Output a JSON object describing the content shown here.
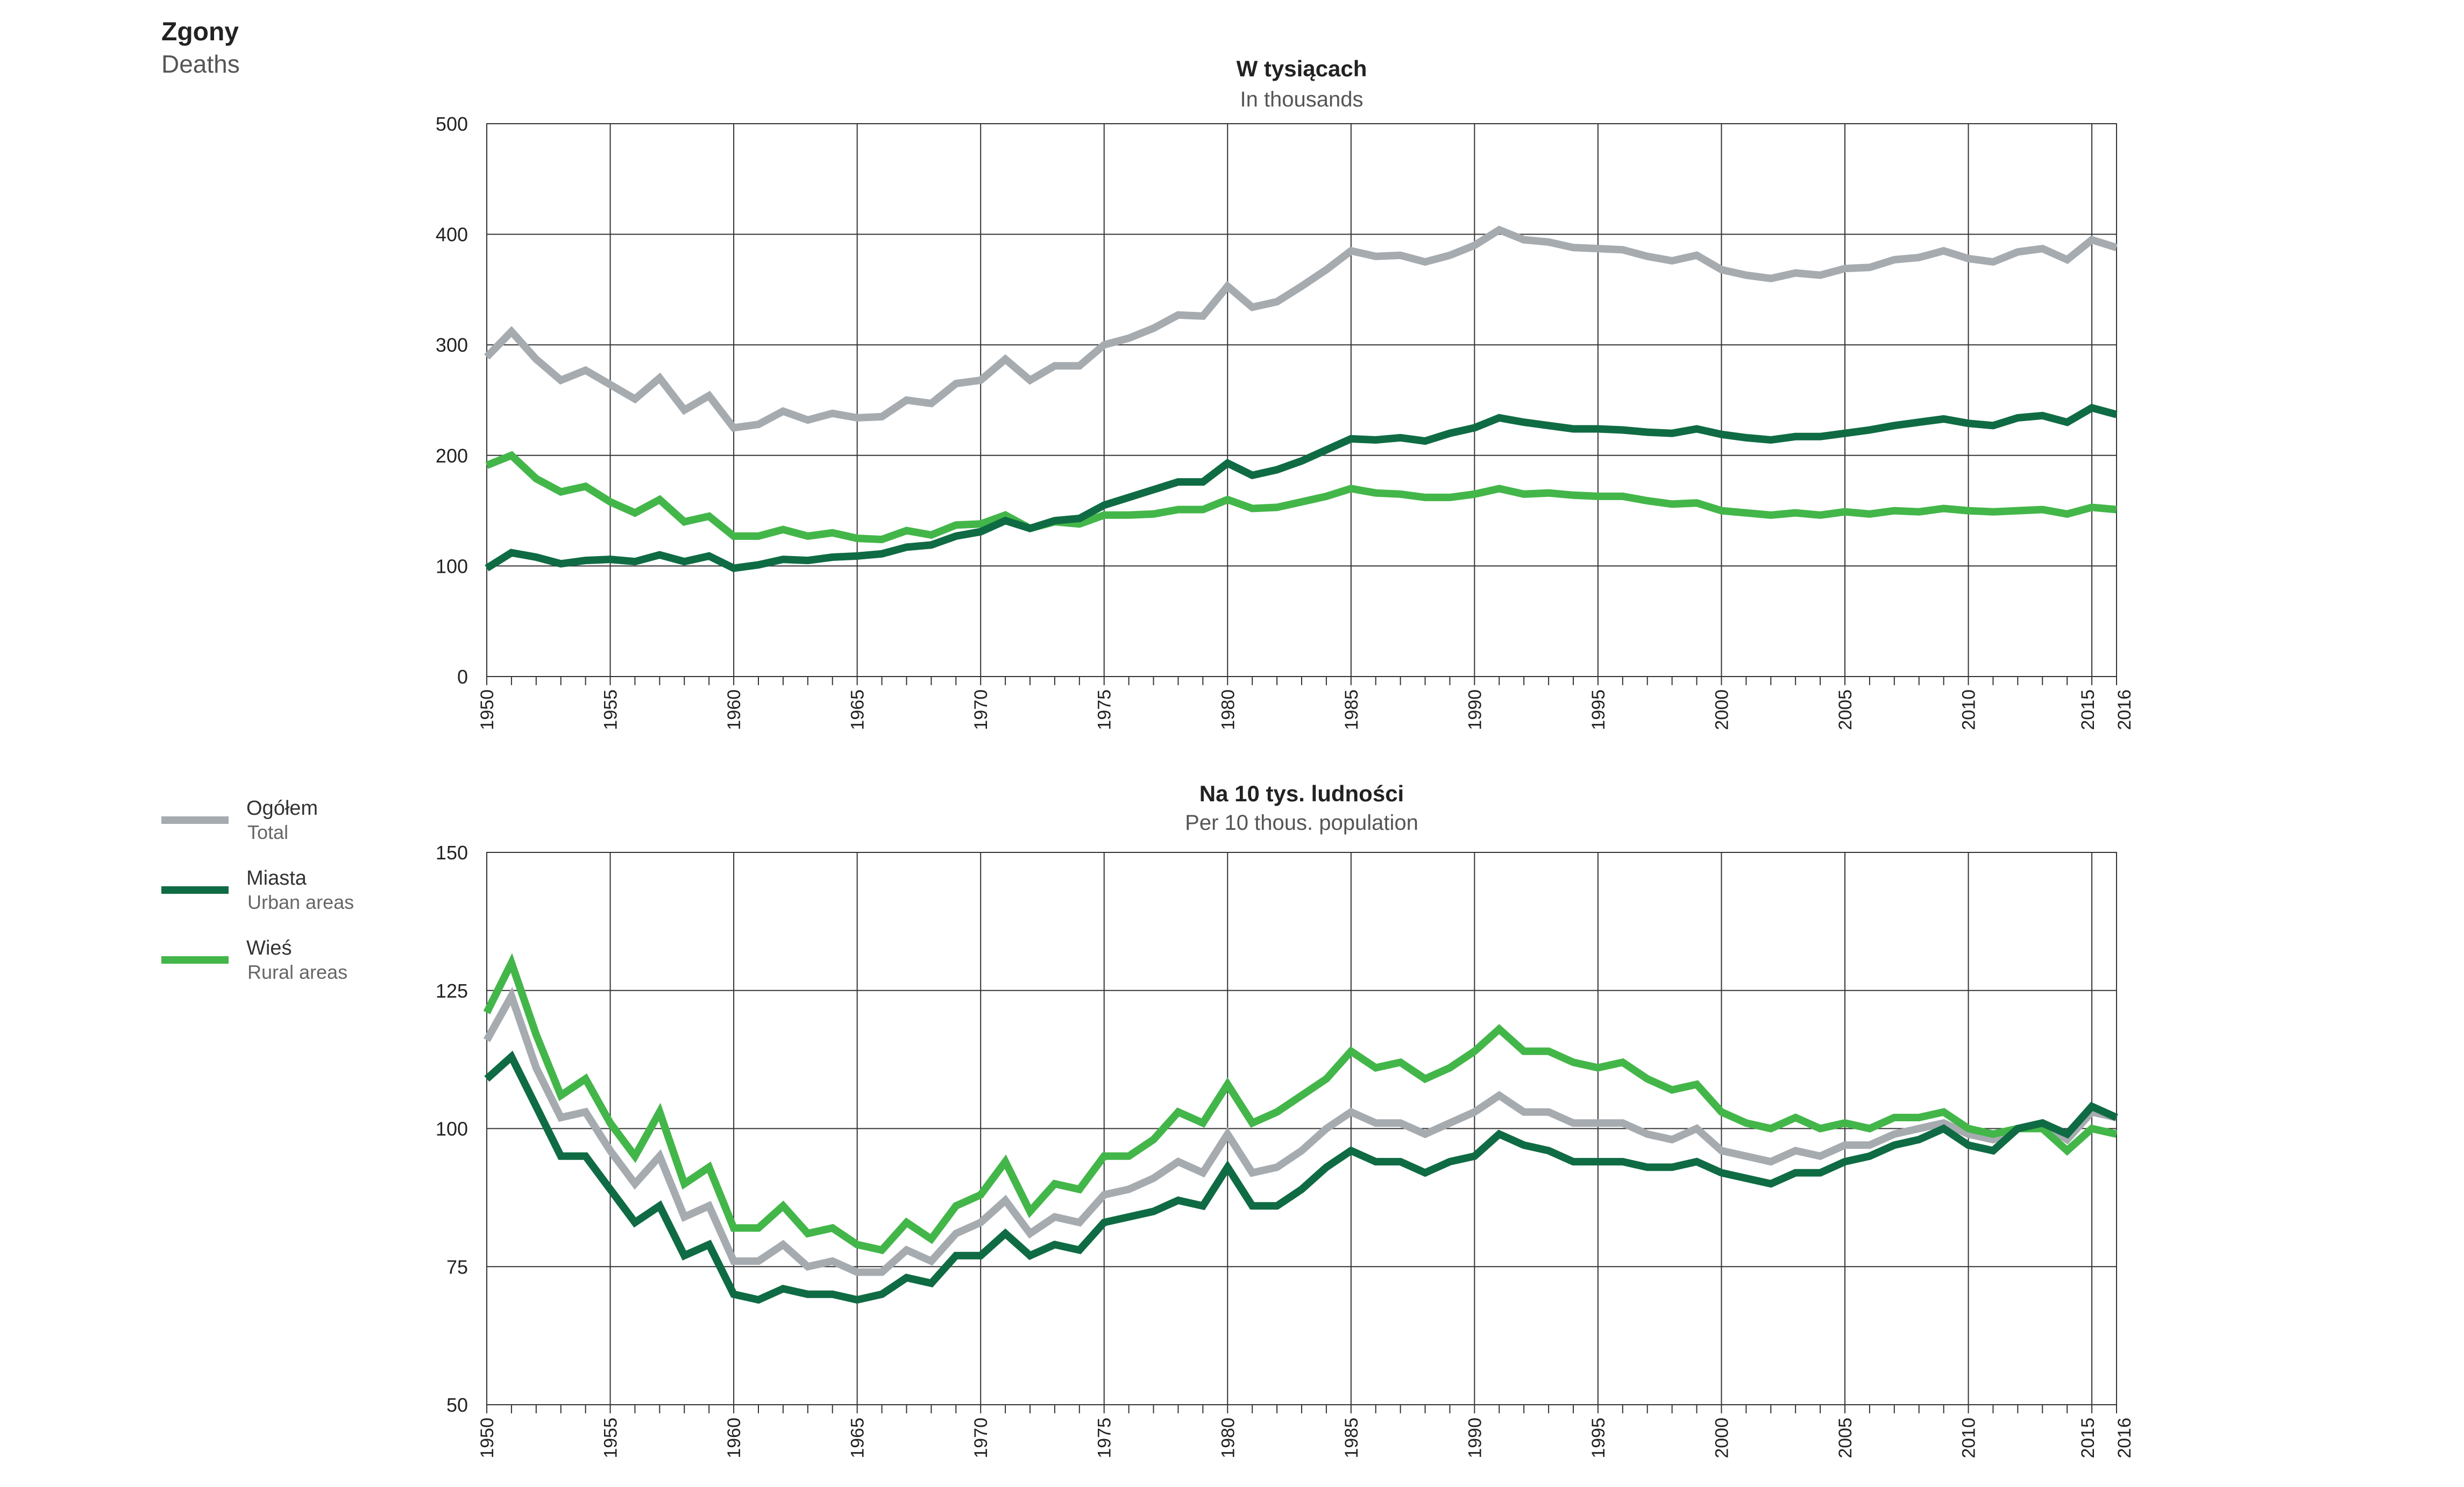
{
  "header": {
    "title": "Zgony",
    "subtitle": "Deaths"
  },
  "legend": {
    "items": [
      {
        "label": "Ogółem",
        "sublabel": "Total",
        "color": "#a6abb0"
      },
      {
        "label": "Miasta",
        "sublabel": "Urban areas",
        "color": "#0f6b43"
      },
      {
        "label": "Wieś",
        "sublabel": "Rural areas",
        "color": "#43b649"
      }
    ]
  },
  "chart_data": [
    {
      "type": "line",
      "title": "W tysiącach",
      "subtitle": "In thousands",
      "xlabel": "",
      "ylabel": "",
      "xlim": [
        1950,
        2016
      ],
      "ylim": [
        0,
        500
      ],
      "yticks": [
        0,
        100,
        200,
        300,
        400,
        500
      ],
      "xticks": [
        "1950",
        "1955",
        "1960",
        "1965",
        "1970",
        "1975",
        "1980",
        "1985",
        "1990",
        "1995",
        "2000",
        "2005",
        "2010",
        "2015",
        "2016"
      ],
      "grid": true,
      "x": [
        1950,
        1951,
        1952,
        1953,
        1954,
        1955,
        1956,
        1957,
        1958,
        1959,
        1960,
        1961,
        1962,
        1963,
        1964,
        1965,
        1966,
        1967,
        1968,
        1969,
        1970,
        1971,
        1972,
        1973,
        1974,
        1975,
        1976,
        1977,
        1978,
        1979,
        1980,
        1981,
        1982,
        1983,
        1984,
        1985,
        1986,
        1987,
        1988,
        1989,
        1990,
        1991,
        1992,
        1993,
        1994,
        1995,
        1996,
        1997,
        1998,
        1999,
        2000,
        2001,
        2002,
        2003,
        2004,
        2005,
        2006,
        2007,
        2008,
        2009,
        2010,
        2011,
        2012,
        2013,
        2014,
        2015,
        2016
      ],
      "series": [
        {
          "name": "Ogółem",
          "values": [
            289,
            312,
            287,
            268,
            277,
            264,
            251,
            270,
            241,
            254,
            225,
            228,
            240,
            232,
            238,
            234,
            235,
            250,
            247,
            265,
            268,
            287,
            268,
            281,
            281,
            300,
            306,
            315,
            327,
            326,
            353,
            334,
            339,
            353,
            368,
            385,
            380,
            381,
            375,
            381,
            390,
            404,
            395,
            393,
            388,
            387,
            386,
            380,
            376,
            381,
            368,
            363,
            360,
            365,
            363,
            369,
            370,
            377,
            379,
            385,
            378,
            375,
            384,
            387,
            377,
            395,
            388
          ]
        },
        {
          "name": "Miasta",
          "values": [
            98,
            112,
            108,
            102,
            105,
            106,
            104,
            110,
            104,
            109,
            98,
            101,
            106,
            105,
            108,
            109,
            111,
            117,
            119,
            127,
            131,
            141,
            134,
            141,
            143,
            155,
            162,
            169,
            176,
            176,
            193,
            182,
            187,
            195,
            205,
            215,
            214,
            216,
            213,
            220,
            225,
            234,
            230,
            227,
            224,
            224,
            223,
            221,
            220,
            224,
            219,
            216,
            214,
            217,
            217,
            220,
            223,
            227,
            230,
            233,
            229,
            227,
            234,
            236,
            230,
            243,
            237
          ]
        },
        {
          "name": "Wieś",
          "values": [
            191,
            200,
            179,
            167,
            172,
            158,
            148,
            160,
            140,
            145,
            127,
            127,
            133,
            127,
            130,
            125,
            124,
            132,
            128,
            137,
            138,
            146,
            134,
            140,
            138,
            146,
            146,
            147,
            151,
            151,
            160,
            152,
            153,
            158,
            163,
            170,
            166,
            165,
            162,
            162,
            165,
            170,
            165,
            166,
            164,
            163,
            163,
            159,
            156,
            157,
            150,
            148,
            146,
            148,
            146,
            149,
            147,
            150,
            149,
            152,
            150,
            149,
            150,
            151,
            147,
            153,
            151
          ]
        }
      ]
    },
    {
      "type": "line",
      "title": "Na 10 tys. ludności",
      "subtitle": "Per 10 thous. population",
      "xlabel": "",
      "ylabel": "",
      "xlim": [
        1950,
        2016
      ],
      "ylim": [
        50,
        150
      ],
      "yticks": [
        50,
        75,
        100,
        125,
        150
      ],
      "xticks": [
        "1950",
        "1955",
        "1960",
        "1965",
        "1970",
        "1975",
        "1980",
        "1985",
        "1990",
        "1995",
        "2000",
        "2005",
        "2010",
        "2015",
        "2016"
      ],
      "grid": true,
      "x": [
        1950,
        1951,
        1952,
        1953,
        1954,
        1955,
        1956,
        1957,
        1958,
        1959,
        1960,
        1961,
        1962,
        1963,
        1964,
        1965,
        1966,
        1967,
        1968,
        1969,
        1970,
        1971,
        1972,
        1973,
        1974,
        1975,
        1976,
        1977,
        1978,
        1979,
        1980,
        1981,
        1982,
        1983,
        1984,
        1985,
        1986,
        1987,
        1988,
        1989,
        1990,
        1991,
        1992,
        1993,
        1994,
        1995,
        1996,
        1997,
        1998,
        1999,
        2000,
        2001,
        2002,
        2003,
        2004,
        2005,
        2006,
        2007,
        2008,
        2009,
        2010,
        2011,
        2012,
        2013,
        2014,
        2015,
        2016
      ],
      "series": [
        {
          "name": "Ogółem",
          "values": [
            116,
            124,
            111,
            102,
            103,
            96,
            90,
            95,
            84,
            86,
            76,
            76,
            79,
            75,
            76,
            74,
            74,
            78,
            76,
            81,
            83,
            87,
            81,
            84,
            83,
            88,
            89,
            91,
            94,
            92,
            99,
            92,
            93,
            96,
            100,
            103,
            101,
            101,
            99,
            101,
            103,
            106,
            103,
            103,
            101,
            101,
            101,
            99,
            98,
            100,
            96,
            95,
            94,
            96,
            95,
            97,
            97,
            99,
            100,
            101,
            99,
            98,
            100,
            101,
            98,
            103,
            102
          ]
        },
        {
          "name": "Miasta",
          "values": [
            109,
            113,
            104,
            95,
            95,
            89,
            83,
            86,
            77,
            79,
            70,
            69,
            71,
            70,
            70,
            69,
            70,
            73,
            72,
            77,
            77,
            81,
            77,
            79,
            78,
            83,
            84,
            85,
            87,
            86,
            93,
            86,
            86,
            89,
            93,
            96,
            94,
            94,
            92,
            94,
            95,
            99,
            97,
            96,
            94,
            94,
            94,
            93,
            93,
            94,
            92,
            91,
            90,
            92,
            92,
            94,
            95,
            97,
            98,
            100,
            97,
            96,
            100,
            101,
            99,
            104,
            102
          ]
        },
        {
          "name": "Wieś",
          "values": [
            121,
            130,
            117,
            106,
            109,
            101,
            95,
            103,
            90,
            93,
            82,
            82,
            86,
            81,
            82,
            79,
            78,
            83,
            80,
            86,
            88,
            94,
            85,
            90,
            89,
            95,
            95,
            98,
            103,
            101,
            108,
            101,
            103,
            106,
            109,
            114,
            111,
            112,
            109,
            111,
            114,
            118,
            114,
            114,
            112,
            111,
            112,
            109,
            107,
            108,
            103,
            101,
            100,
            102,
            100,
            101,
            100,
            102,
            102,
            103,
            100,
            99,
            100,
            100,
            96,
            100,
            99
          ]
        }
      ]
    }
  ]
}
